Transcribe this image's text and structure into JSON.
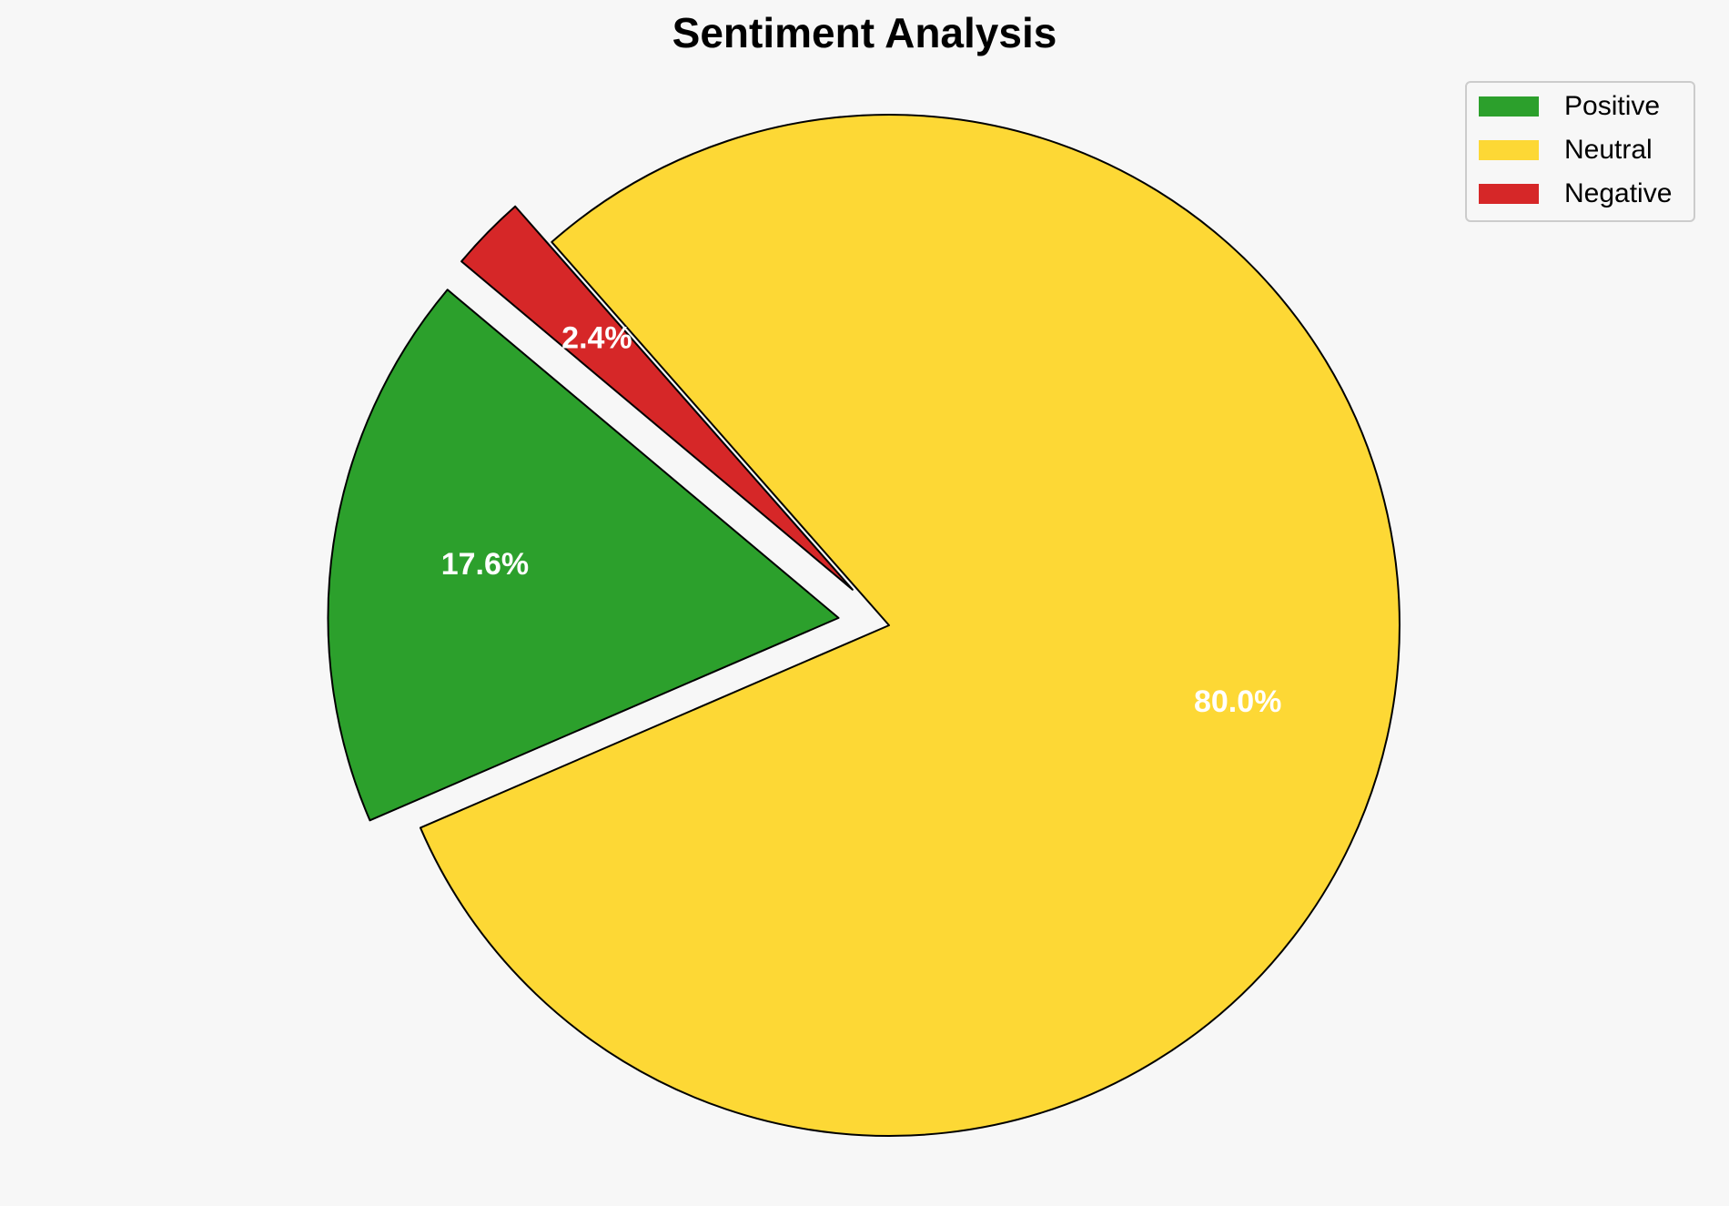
{
  "chart_data": {
    "type": "pie",
    "title": "Sentiment Analysis",
    "categories": [
      "Positive",
      "Neutral",
      "Negative"
    ],
    "values": [
      17.6,
      80.0,
      2.4
    ],
    "value_labels": [
      "17.6%",
      "80.0%",
      "2.4%"
    ],
    "colors": [
      "#2ca02c",
      "#fdd835",
      "#d62728"
    ],
    "start_angle": 140,
    "explode": [
      0.1,
      0,
      0.1
    ],
    "legend": "upper right"
  }
}
